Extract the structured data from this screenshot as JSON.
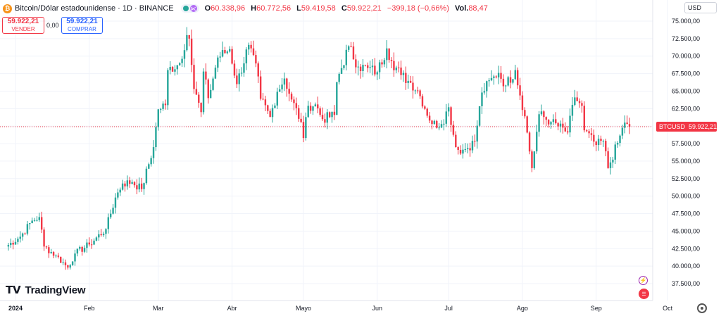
{
  "header": {
    "coin_glyph": "₿",
    "symbol_title": "Bitcoin/Dólar estadounidense · 1D · BINANCE",
    "ohlc": [
      {
        "k": "O",
        "v": "60.338,96"
      },
      {
        "k": "H",
        "v": "60.772,56"
      },
      {
        "k": "L",
        "v": "59.419,58"
      },
      {
        "k": "C",
        "v": "59.922,21"
      }
    ],
    "change": "−399,18 (−0,66%)",
    "volume": {
      "k": "Vol.",
      "v": "88,47"
    }
  },
  "trade": {
    "sell_price": "59.922,21",
    "sell_label": "VENDER",
    "spread": "0,00",
    "buy_price": "59.922,21",
    "buy_label": "COMPRAR"
  },
  "currency_select": "USD",
  "logo_text": "TradingView",
  "colors": {
    "up": "#26a69a",
    "down": "#f23645",
    "grid": "#f0f3fa",
    "text": "#131722",
    "axis": "#787b86"
  },
  "chart_data": {
    "type": "candlestick",
    "symbol": "BTCUSD",
    "last_price": "59.922,21",
    "y_ticks": [
      "75.000,00",
      "72.500,00",
      "70.000,00",
      "67.500,00",
      "65.000,00",
      "62.500,00",
      "60.000,00",
      "57.500,00",
      "55.000,00",
      "52.500,00",
      "50.000,00",
      "47.500,00",
      "45.000,00",
      "42.500,00",
      "40.000,00",
      "37.500,00"
    ],
    "y_tick_values": [
      75000,
      72500,
      70000,
      67500,
      65000,
      62500,
      60000,
      57500,
      55000,
      52500,
      50000,
      47500,
      45000,
      42500,
      40000,
      37500
    ],
    "x_ticks": [
      "2024",
      "Feb",
      "Mar",
      "Abr",
      "Mayo",
      "Jun",
      "Jul",
      "Ago",
      "Sep",
      "Oct"
    ],
    "x_tick_dates": [
      "2024-01-01",
      "2024-02-01",
      "2024-03-01",
      "2024-04-01",
      "2024-05-01",
      "2024-06-01",
      "2024-07-01",
      "2024-08-01",
      "2024-09-01",
      "2024-10-01"
    ],
    "start_date": "2023-12-28",
    "anchors": [
      [
        "2023-12-28",
        42800
      ],
      [
        "2024-01-03",
        44200
      ],
      [
        "2024-01-08",
        46500
      ],
      [
        "2024-01-11",
        47000
      ],
      [
        "2024-01-13",
        42800
      ],
      [
        "2024-01-18",
        41500
      ],
      [
        "2024-01-23",
        39800
      ],
      [
        "2024-01-26",
        41800
      ],
      [
        "2024-02-01",
        43100
      ],
      [
        "2024-02-08",
        45300
      ],
      [
        "2024-02-12",
        49800
      ],
      [
        "2024-02-15",
        51800
      ],
      [
        "2024-02-19",
        52000
      ],
      [
        "2024-02-23",
        51000
      ],
      [
        "2024-02-28",
        57000
      ],
      [
        "2024-03-01",
        62400
      ],
      [
        "2024-03-04",
        63000
      ],
      [
        "2024-03-05",
        68000
      ],
      [
        "2024-03-10",
        69000
      ],
      [
        "2024-03-13",
        73000
      ],
      [
        "2024-03-14",
        72500
      ],
      [
        "2024-03-16",
        65300
      ],
      [
        "2024-03-19",
        62000
      ],
      [
        "2024-03-20",
        67800
      ],
      [
        "2024-03-22",
        64000
      ],
      [
        "2024-03-26",
        69800
      ],
      [
        "2024-03-31",
        71000
      ],
      [
        "2024-04-03",
        66000
      ],
      [
        "2024-04-08",
        71600
      ],
      [
        "2024-04-12",
        67100
      ],
      [
        "2024-04-13",
        63900
      ],
      [
        "2024-04-17",
        61300
      ],
      [
        "2024-04-20",
        64900
      ],
      [
        "2024-04-23",
        66800
      ],
      [
        "2024-04-26",
        63800
      ],
      [
        "2024-04-30",
        60600
      ],
      [
        "2024-05-01",
        58300
      ],
      [
        "2024-05-03",
        62900
      ],
      [
        "2024-05-06",
        63100
      ],
      [
        "2024-05-09",
        61000
      ],
      [
        "2024-05-14",
        61600
      ],
      [
        "2024-05-15",
        66300
      ],
      [
        "2024-05-20",
        71400
      ],
      [
        "2024-05-24",
        68500
      ],
      [
        "2024-05-28",
        68300
      ],
      [
        "2024-06-01",
        67700
      ],
      [
        "2024-06-05",
        71100
      ],
      [
        "2024-06-07",
        69300
      ],
      [
        "2024-06-11",
        67300
      ],
      [
        "2024-06-15",
        66200
      ],
      [
        "2024-06-18",
        65100
      ],
      [
        "2024-06-24",
        60300
      ],
      [
        "2024-06-28",
        60300
      ],
      [
        "2024-07-01",
        62700
      ],
      [
        "2024-07-04",
        57000
      ],
      [
        "2024-07-05",
        56600
      ],
      [
        "2024-07-08",
        56700
      ],
      [
        "2024-07-12",
        57800
      ],
      [
        "2024-07-15",
        64800
      ],
      [
        "2024-07-20",
        67100
      ],
      [
        "2024-07-22",
        67600
      ],
      [
        "2024-07-25",
        65800
      ],
      [
        "2024-07-29",
        68000
      ],
      [
        "2024-08-02",
        61400
      ],
      [
        "2024-08-05",
        54000
      ],
      [
        "2024-08-08",
        61700
      ],
      [
        "2024-08-13",
        60600
      ],
      [
        "2024-08-20",
        59100
      ],
      [
        "2024-08-23",
        64100
      ],
      [
        "2024-08-26",
        62900
      ],
      [
        "2024-08-27",
        59400
      ],
      [
        "2024-09-01",
        57300
      ],
      [
        "2024-09-04",
        57900
      ],
      [
        "2024-09-06",
        54000
      ],
      [
        "2024-09-10",
        57600
      ],
      [
        "2024-09-13",
        60500
      ],
      [
        "2024-09-14",
        60300
      ],
      [
        "2024-09-15",
        59922
      ]
    ]
  }
}
